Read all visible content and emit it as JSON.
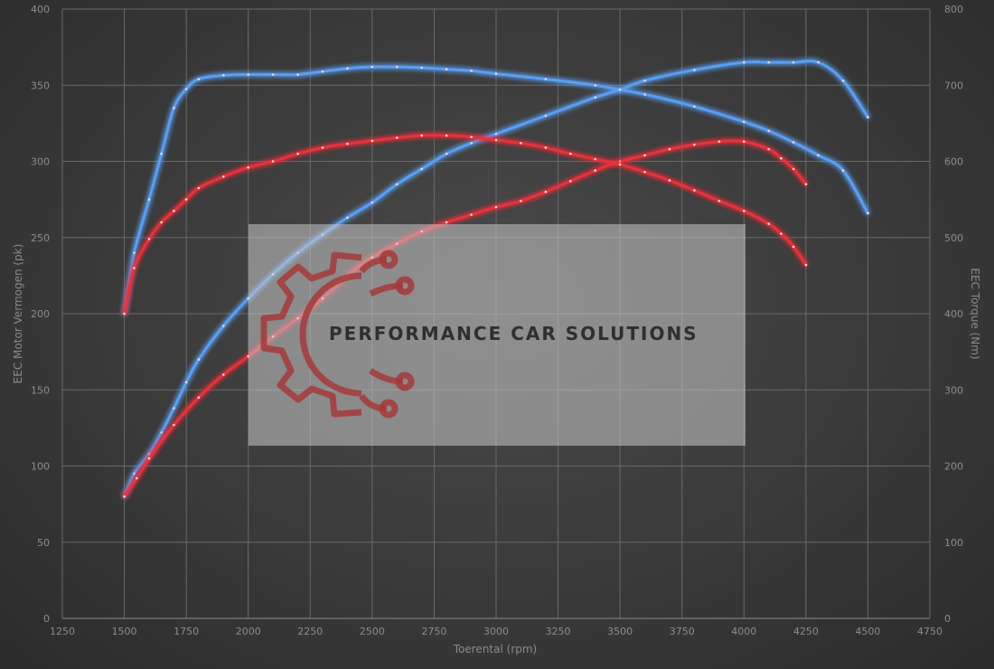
{
  "watermark": {
    "text": "PERFORMANCE CAR SOLUTIONS"
  },
  "chart_data": {
    "type": "line",
    "xlabel": "Toerental (rpm)",
    "ylabel_left": "EEC Motor Vermogen (pk)",
    "ylabel_right": "EEC Torque (Nm)",
    "xlim": [
      1250,
      4750
    ],
    "x_ticks": [
      1250,
      1500,
      1750,
      2000,
      2250,
      2500,
      2750,
      3000,
      3250,
      3500,
      3750,
      4000,
      4250,
      4500,
      4750
    ],
    "ylim_left": [
      0,
      400
    ],
    "y_ticks_left": [
      0,
      50,
      100,
      150,
      200,
      250,
      300,
      350,
      400
    ],
    "ylim_right": [
      0,
      800
    ],
    "y_ticks_right": [
      0,
      100,
      200,
      300,
      400,
      500,
      600,
      700,
      800
    ],
    "grid": true,
    "series": [
      {
        "axis": "left",
        "color": "#5a9ef0",
        "x": [
          1500,
          1540,
          1600,
          1650,
          1700,
          1750,
          1800,
          1900,
          2000,
          2100,
          2200,
          2300,
          2400,
          2500,
          2600,
          2700,
          2800,
          2900,
          3000,
          3200,
          3400,
          3500,
          3600,
          3800,
          4000,
          4100,
          4200,
          4300,
          4400,
          4500
        ],
        "y": [
          80,
          95,
          108,
          122,
          138,
          155,
          170,
          192,
          210,
          226,
          240,
          252,
          263,
          273,
          285,
          295,
          305,
          312,
          318,
          330,
          342,
          347,
          353,
          360,
          365,
          365,
          365,
          365,
          353,
          329
        ]
      },
      {
        "axis": "left",
        "color": "#e8303a",
        "x": [
          1500,
          1550,
          1600,
          1700,
          1800,
          1900,
          2000,
          2100,
          2200,
          2300,
          2400,
          2500,
          2600,
          2700,
          2800,
          2900,
          3000,
          3100,
          3200,
          3300,
          3400,
          3500,
          3600,
          3700,
          3800,
          3900,
          4000,
          4100,
          4150,
          4200,
          4250
        ],
        "y": [
          80,
          92,
          105,
          127,
          145,
          160,
          172,
          185,
          197,
          210,
          225,
          237,
          246,
          254,
          260,
          265,
          270,
          274,
          280,
          287,
          294,
          300,
          304,
          308,
          311,
          313,
          313,
          308,
          302,
          295,
          285
        ]
      },
      {
        "axis": "right",
        "color": "#5a9ef0",
        "x": [
          1500,
          1540,
          1600,
          1650,
          1700,
          1750,
          1800,
          1900,
          2000,
          2100,
          2200,
          2300,
          2400,
          2500,
          2600,
          2700,
          2800,
          2900,
          3000,
          3200,
          3400,
          3500,
          3600,
          3800,
          4000,
          4100,
          4200,
          4300,
          4400,
          4500
        ],
        "y": [
          400,
          480,
          550,
          610,
          670,
          695,
          708,
          713,
          714,
          714,
          714,
          718,
          722,
          724,
          724,
          723,
          721,
          719,
          715,
          708,
          700,
          694,
          688,
          672,
          652,
          640,
          625,
          608,
          588,
          532
        ]
      },
      {
        "axis": "right",
        "color": "#e8303a",
        "x": [
          1500,
          1540,
          1600,
          1650,
          1700,
          1750,
          1800,
          1900,
          2000,
          2100,
          2200,
          2300,
          2400,
          2500,
          2600,
          2700,
          2800,
          2900,
          3000,
          3100,
          3200,
          3300,
          3400,
          3500,
          3600,
          3700,
          3800,
          3900,
          4000,
          4100,
          4150,
          4200,
          4250
        ],
        "y": [
          400,
          460,
          498,
          520,
          535,
          550,
          565,
          580,
          592,
          600,
          610,
          618,
          623,
          627,
          631,
          634,
          634,
          632,
          628,
          624,
          618,
          610,
          603,
          596,
          586,
          575,
          562,
          548,
          535,
          518,
          505,
          488,
          464
        ]
      }
    ]
  }
}
